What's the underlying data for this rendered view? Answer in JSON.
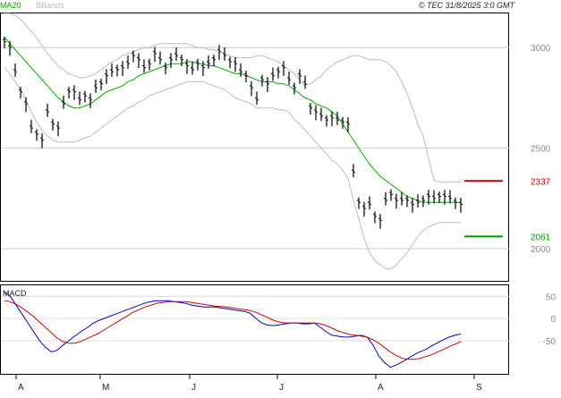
{
  "chart_data": {
    "type": "line",
    "copyright": "© TEC 31/8/2025 3:0 GMT",
    "legend": [
      {
        "label": "MA20",
        "color": "#00aa00"
      },
      {
        "label": "BBands",
        "color": "#bbbbbb"
      }
    ],
    "price_panel": {
      "ylim": [
        1840,
        3170
      ],
      "y_ticks": [
        {
          "value": 2000,
          "label": "2000"
        },
        {
          "value": 2500,
          "label": "2500"
        },
        {
          "value": 3000,
          "label": "3000"
        }
      ],
      "grid_lines": [
        2000,
        2500,
        3000
      ],
      "levels": [
        {
          "value": 2337,
          "label": "2337",
          "color": "#cc0000"
        },
        {
          "value": 2061,
          "label": "2061",
          "color": "#009900"
        }
      ],
      "series": [
        {
          "name": "Price",
          "type": "ohlc",
          "color": "#000000",
          "values": [
            3030,
            3000,
            2880,
            2780,
            2720,
            2600,
            2570,
            2540,
            2680,
            2620,
            2600,
            2720,
            2780,
            2780,
            2740,
            2760,
            2740,
            2800,
            2820,
            2860,
            2880,
            2890,
            2900,
            2920,
            2960,
            2940,
            2900,
            2920,
            2970,
            2940,
            2900,
            2940,
            2960,
            2940,
            2910,
            2890,
            2920,
            2900,
            2920,
            2940,
            2980,
            2960,
            2930,
            2920,
            2880,
            2860,
            2800,
            2740,
            2840,
            2820,
            2860,
            2880,
            2900,
            2840,
            2800,
            2860,
            2820,
            2700,
            2680,
            2660,
            2640,
            2650,
            2640,
            2630,
            2620,
            2380,
            2230,
            2200,
            2220,
            2160,
            2140,
            2240,
            2270,
            2240,
            2240,
            2240,
            2220,
            2230,
            2240,
            2260,
            2250,
            2260,
            2260,
            2250,
            2230,
            2220
          ]
        },
        {
          "name": "MA20",
          "color": "#00aa00",
          "values": [
            3050,
            3020,
            2990,
            2960,
            2930,
            2900,
            2870,
            2840,
            2810,
            2780,
            2750,
            2730,
            2710,
            2700,
            2700,
            2710,
            2720,
            2740,
            2760,
            2780,
            2790,
            2800,
            2810,
            2830,
            2840,
            2860,
            2870,
            2880,
            2890,
            2900,
            2910,
            2920,
            2920,
            2920,
            2930,
            2930,
            2920,
            2920,
            2910,
            2910,
            2900,
            2890,
            2880,
            2870,
            2870,
            2860,
            2850,
            2840,
            2830,
            2830,
            2830,
            2820,
            2820,
            2810,
            2790,
            2770,
            2750,
            2740,
            2720,
            2710,
            2700,
            2680,
            2660,
            2620,
            2580,
            2540,
            2500,
            2460,
            2420,
            2390,
            2360,
            2340,
            2320,
            2300,
            2280,
            2260,
            2250,
            2240,
            2230,
            2230,
            2230,
            2230,
            2230,
            2230,
            2230,
            2230
          ]
        },
        {
          "name": "BBands",
          "color": "#bbbbbb",
          "upper": [
            3170,
            3170,
            3160,
            3140,
            3110,
            3080,
            3050,
            3010,
            2970,
            2940,
            2910,
            2890,
            2870,
            2860,
            2850,
            2850,
            2860,
            2870,
            2890,
            2910,
            2930,
            2940,
            2960,
            2970,
            2980,
            2990,
            3000,
            3000,
            3010,
            3020,
            3020,
            3020,
            3020,
            3020,
            3020,
            3010,
            3000,
            3000,
            2990,
            2990,
            2980,
            2970,
            2960,
            2950,
            2950,
            2950,
            2950,
            2960,
            2960,
            2950,
            2940,
            2930,
            2910,
            2890,
            2870,
            2840,
            2810,
            2820,
            2840,
            2860,
            2890,
            2910,
            2930,
            2940,
            2950,
            2960,
            2960,
            2950,
            2940,
            2940,
            2940,
            2930,
            2910,
            2880,
            2830,
            2770,
            2700,
            2620,
            2560,
            2450,
            2340,
            2330,
            2330,
            2330,
            2330,
            2330
          ],
          "lower": [
            2900,
            2870,
            2830,
            2790,
            2740,
            2680,
            2630,
            2590,
            2560,
            2540,
            2530,
            2530,
            2530,
            2530,
            2540,
            2550,
            2560,
            2580,
            2600,
            2620,
            2640,
            2660,
            2680,
            2700,
            2710,
            2730,
            2740,
            2760,
            2770,
            2780,
            2790,
            2800,
            2810,
            2820,
            2830,
            2830,
            2830,
            2830,
            2820,
            2810,
            2800,
            2790,
            2770,
            2750,
            2740,
            2730,
            2720,
            2700,
            2700,
            2700,
            2700,
            2690,
            2690,
            2680,
            2640,
            2620,
            2590,
            2560,
            2530,
            2500,
            2470,
            2440,
            2420,
            2390,
            2350,
            2240,
            2150,
            2050,
            1980,
            1940,
            1920,
            1900,
            1900,
            1920,
            1950,
            1980,
            2020,
            2060,
            2090,
            2110,
            2120,
            2130,
            2130,
            2130,
            2130,
            2130
          ]
        }
      ]
    },
    "macd_panel": {
      "label": "MACD",
      "ylim": [
        -125,
        75
      ],
      "y_ticks": [
        {
          "value": 50,
          "label": "50"
        },
        {
          "value": 0,
          "label": "0"
        },
        {
          "value": -50,
          "label": "-50"
        }
      ],
      "series": [
        {
          "name": "MACD",
          "color": "#0000cc",
          "values": [
            60,
            50,
            30,
            10,
            -10,
            -30,
            -50,
            -65,
            -75,
            -72,
            -60,
            -50,
            -40,
            -30,
            -22,
            -12,
            -5,
            0,
            5,
            10,
            15,
            20,
            25,
            30,
            35,
            38,
            40,
            40,
            40,
            38,
            36,
            34,
            30,
            28,
            26,
            26,
            26,
            24,
            22,
            20,
            18,
            16,
            12,
            0,
            -10,
            -15,
            -16,
            -14,
            -12,
            -10,
            -10,
            -12,
            -12,
            -10,
            -20,
            -30,
            -38,
            -40,
            -42,
            -42,
            -40,
            -38,
            -42,
            -60,
            -85,
            -100,
            -110,
            -105,
            -98,
            -90,
            -82,
            -75,
            -70,
            -62,
            -55,
            -48,
            -42,
            -38,
            -35
          ],
          "x_offset": 0
        },
        {
          "name": "Signal",
          "color": "#cc0000",
          "values": [
            40,
            38,
            32,
            24,
            14,
            4,
            -8,
            -20,
            -32,
            -44,
            -52,
            -56,
            -56,
            -52,
            -46,
            -40,
            -34,
            -26,
            -18,
            -10,
            -2,
            6,
            14,
            20,
            26,
            30,
            34,
            36,
            38,
            38,
            38,
            38,
            36,
            34,
            32,
            30,
            28,
            27,
            26,
            24,
            22,
            20,
            18,
            14,
            8,
            2,
            -4,
            -8,
            -10,
            -10,
            -10,
            -10,
            -10,
            -10,
            -12,
            -16,
            -22,
            -28,
            -32,
            -36,
            -38,
            -40,
            -42,
            -48,
            -56,
            -66,
            -76,
            -84,
            -90,
            -92,
            -92,
            -90,
            -86,
            -82,
            -76,
            -70,
            -64,
            -58,
            -52
          ],
          "x_offset": 0
        }
      ]
    },
    "x_ticks": [
      "A",
      "M",
      "J",
      "J",
      "A",
      "S"
    ]
  }
}
